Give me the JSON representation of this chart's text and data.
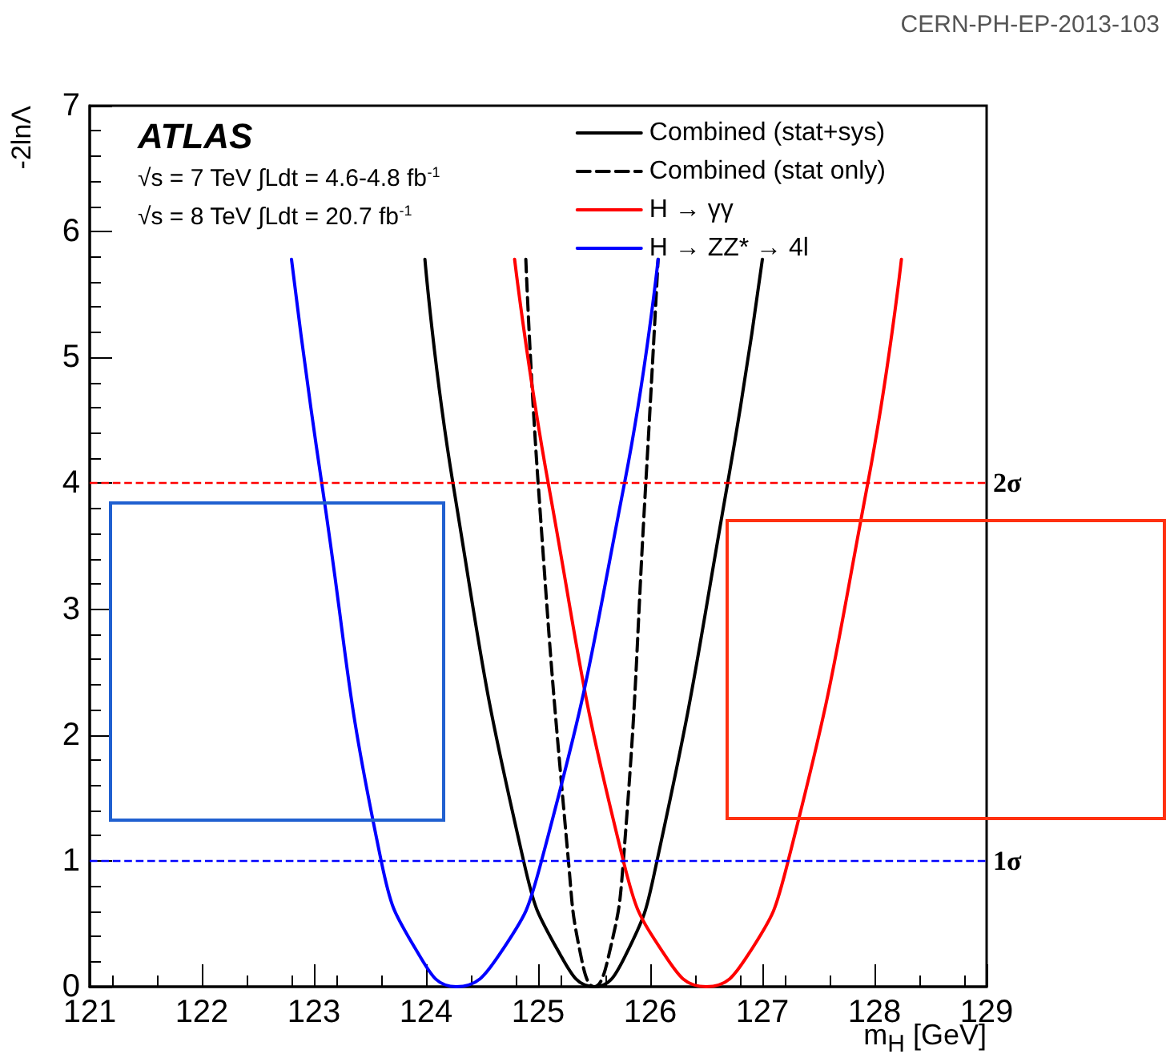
{
  "chart_data": {
    "type": "line",
    "xlabel": "m$_{H}$ [GeV]",
    "ylabel": "-2lnΛ",
    "xlim": [
      121,
      129
    ],
    "xticks": [
      121,
      122,
      123,
      124,
      125,
      126,
      127,
      128,
      129
    ],
    "ylim": [
      0,
      7
    ],
    "yticks": [
      0,
      1,
      2,
      3,
      4,
      5,
      6,
      7
    ],
    "grid": false,
    "legend": "top right",
    "marker": "none",
    "series": [
      {
        "name": "Combined (stat+sys)",
        "color": "#000000",
        "line_style": "solid",
        "x": [
          123.99,
          124.24,
          124.87,
          125.2,
          125.5,
          125.78,
          126.06,
          126.69,
          127.0
        ],
        "values": [
          5.78,
          4,
          1,
          0.25,
          0,
          0.25,
          1,
          4,
          5.78
        ]
      },
      {
        "name": "Combined (stat only)",
        "color": "#000000",
        "line_style": "dashed",
        "x": [
          124.89,
          125.0,
          125.27,
          125.38,
          125.5,
          125.63,
          125.76,
          125.96,
          126.07
        ],
        "values": [
          5.78,
          4,
          1,
          0.25,
          0,
          0.25,
          1,
          4,
          5.78
        ]
      },
      {
        "name": "H → γγ",
        "color": "#ff0000",
        "line_style": "solid",
        "x": [
          124.79,
          125.09,
          125.76,
          126.13,
          126.5,
          126.87,
          127.23,
          127.94,
          128.24
        ],
        "values": [
          5.78,
          4,
          1,
          0.25,
          0,
          0.25,
          1,
          4,
          5.78
        ]
      },
      {
        "name": "H → ZZ* → 4l",
        "color": "#0000ff",
        "line_style": "solid",
        "x": [
          122.8,
          123.07,
          123.6,
          123.94,
          124.27,
          124.65,
          125.03,
          125.77,
          126.07
        ],
        "values": [
          5.78,
          4,
          1,
          0.25,
          0,
          0.25,
          1,
          4,
          5.78
        ]
      }
    ],
    "ref_lines": [
      {
        "axis": "y",
        "value": 4,
        "label": "2σ",
        "color": "#ff0000",
        "line_style": "dashed"
      },
      {
        "axis": "y",
        "value": 1,
        "label": "1σ",
        "color": "#0000ff",
        "line_style": "dashed"
      }
    ],
    "annotations": [
      "ATLAS",
      "√s = 7 TeV ∫Ldt = 4.6-4.8 fb$^{-1}$",
      "√s = 8 TeV ∫Ldt = 20.7 fb$^{-1}$",
      "CERN-PH-EP-2013-103"
    ]
  }
}
